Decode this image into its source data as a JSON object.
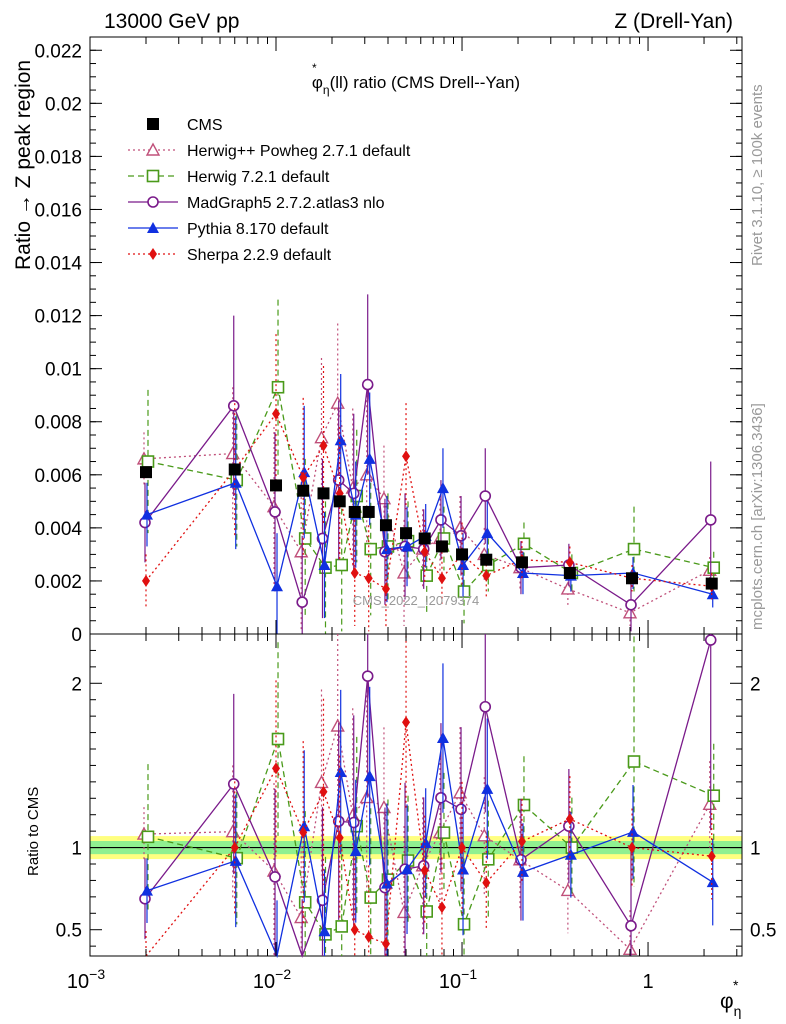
{
  "header": {
    "left_label": "13000 GeV pp",
    "right_label": "Z (Drell-Yan)"
  },
  "side_labels": {
    "rivet": "Rivet 3.1.10, ≥ 100k events",
    "mcplots": "mcplots.cern.ch [arXiv:1306.3436]"
  },
  "chart_data": {
    "type": "scatter",
    "title": "φ*η(ll) ratio (CMS Drell--Yan)",
    "title_parts": {
      "pre": "φ",
      "sup": "*",
      "sub": "η",
      "post": "(ll) ratio (CMS Drell--Yan)"
    },
    "watermark": "CMS_2022_I2079374",
    "xscale": "log",
    "xlim": [
      0.001,
      3.2
    ],
    "xlabel": {
      "main": "φ",
      "sup": "*",
      "sub": "η"
    },
    "xticks": [
      {
        "value": 0.001,
        "base": "10",
        "exp": "−3"
      },
      {
        "value": 0.01,
        "base": "10",
        "exp": "−2"
      },
      {
        "value": 0.1,
        "base": "10",
        "exp": "−1"
      },
      {
        "value": 1,
        "base": "1",
        "exp": ""
      }
    ],
    "main_panel": {
      "ylabel": "Ratio → Z peak region",
      "ylim": [
        0,
        0.0225
      ],
      "yticks": [
        {
          "value": 0,
          "label": "0"
        },
        {
          "value": 0.002,
          "label": "0.002"
        },
        {
          "value": 0.004,
          "label": "0.004"
        },
        {
          "value": 0.006,
          "label": "0.006"
        },
        {
          "value": 0.008,
          "label": "0.008"
        },
        {
          "value": 0.01,
          "label": "0.01"
        },
        {
          "value": 0.012,
          "label": "0.012"
        },
        {
          "value": 0.014,
          "label": "0.014"
        },
        {
          "value": 0.016,
          "label": "0.016"
        },
        {
          "value": 0.018,
          "label": "0.018"
        },
        {
          "value": 0.02,
          "label": "0.02"
        },
        {
          "value": 0.022,
          "label": "0.022"
        }
      ]
    },
    "ratio_panel": {
      "ylabel": "Ratio to CMS",
      "ylim": [
        0.34,
        2.3
      ],
      "yticks": [
        {
          "value": 0.5,
          "label": "0.5"
        },
        {
          "value": 1,
          "label": "1"
        },
        {
          "value": 2,
          "label": "2"
        }
      ],
      "band_inner": 0.04,
      "band_outer": 0.07
    },
    "x": [
      0.002,
      0.006,
      0.01,
      0.014,
      0.018,
      0.022,
      0.0265,
      0.0315,
      0.039,
      0.05,
      0.063,
      0.078,
      0.1,
      0.135,
      0.21,
      0.38,
      0.82,
      2.2
    ],
    "data": {
      "name": "CMS",
      "values": [
        0.0061,
        0.0062,
        0.0056,
        0.0054,
        0.0053,
        0.005,
        0.0046,
        0.0046,
        0.0041,
        0.0038,
        0.0036,
        0.0033,
        0.003,
        0.0028,
        0.0027,
        0.0023,
        0.0021,
        0.0019
      ]
    },
    "series": [
      {
        "name": "Herwig++ Powheg 2.7.1 default",
        "color": "#c0507a",
        "marker": "triangle-open",
        "line": "dotted",
        "values": [
          0.0066,
          0.0068,
          0.0048,
          0.0031,
          0.0074,
          0.0087,
          0.0055,
          0.006,
          0.0051,
          0.0023,
          0.0032,
          0.0036,
          0.004,
          0.003,
          0.0025,
          0.0017,
          0.0008,
          0.0024
        ],
        "errors": [
          0.001,
          0.0025,
          0.003,
          0.003,
          0.003,
          0.003,
          0.003,
          0.003,
          0.002,
          0.002,
          0.0015,
          0.0015,
          0.0012,
          0.001,
          0.0008,
          0.0006,
          0.0005,
          0.0005
        ]
      },
      {
        "name": "Herwig 7.2.1 default",
        "color": "#4a9a1a",
        "marker": "square-open",
        "line": "dashed",
        "values": [
          0.0065,
          0.0058,
          0.0093,
          0.0036,
          0.0025,
          0.0026,
          0.0052,
          0.0032,
          0.0033,
          0.0035,
          0.0022,
          0.0036,
          0.0016,
          0.0026,
          0.0034,
          0.0023,
          0.0032,
          0.0025
        ],
        "errors": [
          0.0027,
          0.0025,
          0.0033,
          0.003,
          0.0025,
          0.0025,
          0.0025,
          0.0025,
          0.002,
          0.0015,
          0.0015,
          0.0012,
          0.0012,
          0.001,
          0.0008,
          0.0007,
          0.0016,
          0.0006
        ]
      },
      {
        "name": "MadGraph5 2.7.2.atlas3 nlo",
        "color": "#7a1a8a",
        "marker": "circle-open",
        "line": "solid",
        "values": [
          0.0042,
          0.0086,
          0.0046,
          0.0012,
          0.0036,
          0.0058,
          0.0053,
          0.0094,
          0.0031,
          0.0033,
          0.0032,
          0.0043,
          0.0037,
          0.0052,
          0.0025,
          0.0026,
          0.0011,
          0.0043
        ],
        "errors": [
          0.0015,
          0.0034,
          0.003,
          0.0025,
          0.003,
          0.003,
          0.003,
          0.0034,
          0.002,
          0.002,
          0.0015,
          0.0015,
          0.0015,
          0.0018,
          0.001,
          0.0008,
          0.001,
          0.0022
        ]
      },
      {
        "name": "Pythia 8.170 default",
        "color": "#1030e0",
        "marker": "triangle-filled",
        "line": "solid",
        "values": [
          0.0045,
          0.0057,
          0.0018,
          0.0061,
          0.0026,
          0.0073,
          0.0045,
          0.0066,
          0.0032,
          0.0033,
          0.0037,
          0.0055,
          0.0026,
          0.0038,
          0.0023,
          0.0022,
          0.0023,
          0.0015
        ],
        "errors": [
          0.0012,
          0.0025,
          0.002,
          0.0025,
          0.002,
          0.0025,
          0.002,
          0.0025,
          0.002,
          0.0015,
          0.0012,
          0.0015,
          0.0012,
          0.0012,
          0.0008,
          0.0006,
          0.0006,
          0.0005
        ]
      },
      {
        "name": "Sherpa 2.2.9 default",
        "color": "#e01010",
        "marker": "diamond-filled",
        "line": "dotted",
        "values": [
          0.002,
          0.0062,
          0.0083,
          0.0059,
          0.0071,
          0.0053,
          0.0023,
          0.0021,
          0.0017,
          0.0067,
          0.0031,
          0.0021,
          0.003,
          0.0022,
          0.0028,
          0.0027,
          0.0021,
          0.0018
        ],
        "errors": [
          0.001,
          0.0025,
          0.003,
          0.003,
          0.003,
          0.0025,
          0.002,
          0.002,
          0.0015,
          0.002,
          0.0012,
          0.001,
          0.0012,
          0.0008,
          0.0007,
          0.0006,
          0.0005,
          0.0005
        ]
      }
    ]
  }
}
